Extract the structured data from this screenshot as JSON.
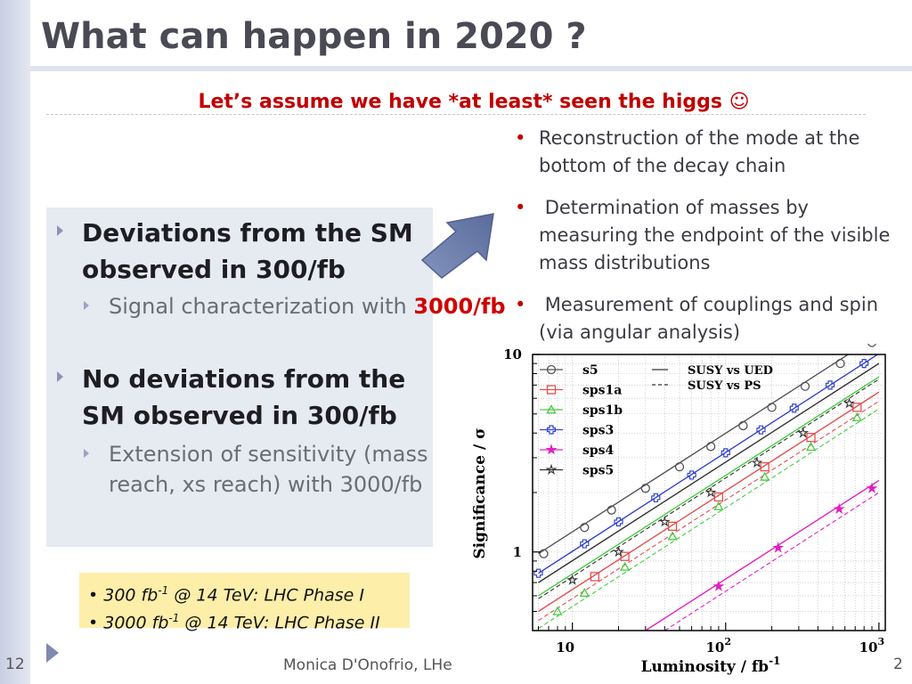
{
  "slide": {
    "title": "What can happen in 2020 ?",
    "subtitle": "Let’s assume we have *at least* seen the higgs ☺",
    "slide_number_left": "12",
    "slide_number_right": "2",
    "footer_author": "Monica D'Onofrio, LHe"
  },
  "right_bullets": [
    "Reconstruction of the mode at the bottom of the decay chain",
    " Determination of masses by measuring the endpoint of the visible mass distributions",
    " Measurement of couplings and spin (via angular analysis)"
  ],
  "left_panel": {
    "point1": "Deviations from the SM observed in 300/fb",
    "point1_sub_text": "Signal characterization with ",
    "point1_sub_highlight": "3000/fb",
    "point2": "No deviations from the SM observed in 300/fb",
    "point2_sub": "Extension of sensitivity (mass reach, xs reach) with 3000/fb"
  },
  "note_box": {
    "line1_pre": "300 fb",
    "line1_sup": "-1",
    "line1_post": " @ 14 TeV: LHC Phase I",
    "line2_pre": "3000 fb",
    "line2_sup": "-1",
    "line2_post": " @ 14 TeV: LHC Phase II"
  },
  "colors": {
    "title": "#4a4a55",
    "accent_red": "#c00000",
    "panel_bg": "#e6eaf1",
    "note_bg": "#fdeeaa",
    "arrow": "#6f7fa8"
  },
  "chart_data": {
    "type": "line",
    "xlabel": "Luminosity / fb",
    "xlabel_sup": "-1",
    "ylabel": "Significance / σ",
    "x_scale": "log",
    "y_scale": "log",
    "xlim": [
      5.5,
      1100
    ],
    "ylim": [
      0.4,
      10
    ],
    "x_ticks": [
      10,
      100,
      1000
    ],
    "x_tick_labels": [
      "10",
      "10",
      "10"
    ],
    "x_tick_sups": [
      "",
      "2",
      "3"
    ],
    "y_ticks": [
      1,
      10
    ],
    "y_tick_labels": [
      "1",
      "10"
    ],
    "grid": true,
    "legend_position": "top-left",
    "legend_styles": [
      {
        "line": "solid",
        "text": "SUSY vs UED"
      },
      {
        "line": "dashed",
        "text": "SUSY vs PS"
      }
    ],
    "series": [
      {
        "name": "s5",
        "color": "#555555",
        "marker": "circle",
        "lines": [
          {
            "dash": "solid",
            "x": [
              6,
              1000
            ],
            "y": [
              0.98,
              12.6
            ]
          }
        ],
        "points": [
          [
            6.5,
            0.98
          ],
          [
            12,
            1.33
          ],
          [
            18,
            1.63
          ],
          [
            30,
            2.1
          ],
          [
            50,
            2.7
          ],
          [
            80,
            3.42
          ],
          [
            130,
            4.36
          ],
          [
            200,
            5.4
          ],
          [
            330,
            6.9
          ],
          [
            560,
            9.0
          ],
          [
            900,
            11.5
          ]
        ]
      },
      {
        "name": "sps1a",
        "color": "#e05050",
        "marker": "square",
        "lines": [
          {
            "dash": "solid",
            "x": [
              6,
              1000
            ],
            "y": [
              0.5,
              6.45
            ]
          },
          {
            "dash": "dashed",
            "x": [
              6,
              1000
            ],
            "y": [
              0.45,
              5.8
            ]
          }
        ],
        "points": [
          [
            14,
            0.75
          ],
          [
            22,
            0.95
          ],
          [
            45,
            1.35
          ],
          [
            90,
            1.9
          ],
          [
            180,
            2.7
          ],
          [
            360,
            3.8
          ],
          [
            720,
            5.4
          ]
        ]
      },
      {
        "name": "sps1b",
        "color": "#44cc44",
        "marker": "triangle",
        "lines": [
          {
            "dash": "solid",
            "x": [
              6,
              1000
            ],
            "y": [
              0.6,
              7.7
            ]
          },
          {
            "dash": "dashed",
            "x": [
              6,
              1000
            ],
            "y": [
              0.41,
              5.3
            ]
          }
        ],
        "points": [
          [
            8,
            0.5
          ],
          [
            12,
            0.62
          ],
          [
            22,
            0.84
          ],
          [
            45,
            1.2
          ],
          [
            90,
            1.7
          ],
          [
            180,
            2.4
          ],
          [
            360,
            3.4
          ],
          [
            720,
            4.8
          ]
        ]
      },
      {
        "name": "sps3",
        "color": "#3344cc",
        "marker": "cross",
        "lines": [
          {
            "dash": "solid",
            "x": [
              6,
              1000
            ],
            "y": [
              0.78,
              10.1
            ]
          }
        ],
        "points": [
          [
            6,
            0.78
          ],
          [
            12,
            1.1
          ],
          [
            20,
            1.42
          ],
          [
            35,
            1.88
          ],
          [
            60,
            2.45
          ],
          [
            100,
            3.18
          ],
          [
            170,
            4.15
          ],
          [
            280,
            5.35
          ],
          [
            480,
            7.0
          ],
          [
            800,
            9.0
          ]
        ]
      },
      {
        "name": "sps4",
        "color": "#e020c0",
        "marker": "star",
        "lines": [
          {
            "dash": "solid",
            "x": [
              30,
              1000
            ],
            "y": [
              0.4,
              2.3
            ]
          },
          {
            "dash": "dashed",
            "x": [
              40,
              1000
            ],
            "y": [
              0.4,
              2.0
            ]
          }
        ],
        "points": [
          [
            90,
            0.67
          ],
          [
            220,
            1.05
          ],
          [
            550,
            1.65
          ],
          [
            900,
            2.1
          ]
        ]
      },
      {
        "name": "sps5",
        "color": "#333333",
        "marker": "star-open",
        "lines": [
          {
            "dash": "solid",
            "x": [
              6,
              1000
            ],
            "y": [
              0.7,
              9.0
            ]
          },
          {
            "dash": "dashed",
            "x": [
              6,
              1000
            ],
            "y": [
              0.58,
              7.5
            ]
          }
        ],
        "points": [
          [
            10,
            0.72
          ],
          [
            20,
            1.0
          ],
          [
            40,
            1.42
          ],
          [
            80,
            2.0
          ],
          [
            160,
            2.83
          ],
          [
            320,
            4.0
          ],
          [
            640,
            5.65
          ]
        ]
      }
    ]
  }
}
